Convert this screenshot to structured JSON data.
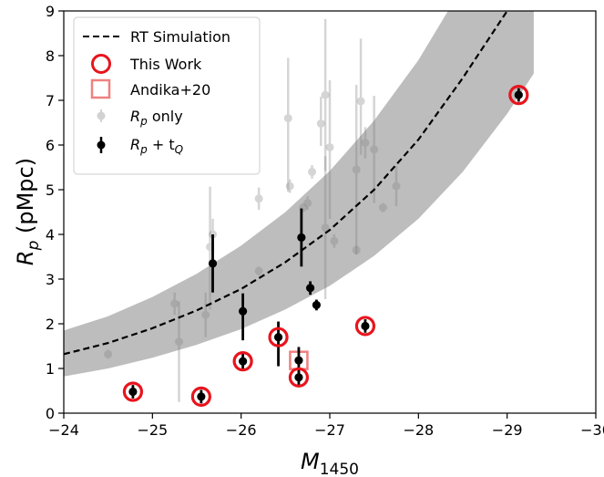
{
  "chart_data": {
    "type": "scatter",
    "xlabel": "M",
    "xlabel_sub": "1450",
    "ylabel": "R",
    "ylabel_sub": "p",
    "ylabel_units": " (pMpc)",
    "xlim": [
      -24,
      -30
    ],
    "ylim": [
      0,
      9
    ],
    "x_ticks": [
      -24,
      -25,
      -26,
      -27,
      -28,
      -29,
      -30
    ],
    "x_tick_labels": [
      "−24",
      "−25",
      "−26",
      "−27",
      "−28",
      "−29",
      "−30"
    ],
    "y_ticks": [
      0,
      1,
      2,
      3,
      4,
      5,
      6,
      7,
      8,
      9
    ],
    "y_tick_labels": [
      "0",
      "1",
      "2",
      "3",
      "4",
      "5",
      "6",
      "7",
      "8",
      "9"
    ],
    "grid": false,
    "legend_position": "top-left",
    "legend": [
      {
        "label": "RT Simulation",
        "marker": "dashed-line"
      },
      {
        "label": "This Work",
        "marker": "red-circle"
      },
      {
        "label": "Andika+20",
        "marker": "pink-square"
      },
      {
        "label": "R",
        "label_sub": "p",
        "label_suffix": " only",
        "marker": "grey-errorbar"
      },
      {
        "label": "R",
        "label_sub": "p",
        "label_mid": " + t",
        "label_sub2": "Q",
        "marker": "black-errorbar"
      }
    ],
    "series": [
      {
        "name": "RT Simulation",
        "kind": "line",
        "x": [
          -24.0,
          -24.5,
          -25.0,
          -25.5,
          -26.0,
          -26.5,
          -27.0,
          -27.5,
          -28.0,
          -28.5,
          -29.0,
          -29.3
        ],
        "y": [
          1.32,
          1.57,
          1.9,
          2.3,
          2.78,
          3.38,
          4.1,
          5.0,
          6.12,
          7.5,
          9.0,
          9.5
        ],
        "band_lower": [
          0.82,
          1.0,
          1.24,
          1.53,
          1.88,
          2.32,
          2.85,
          3.52,
          4.35,
          5.4,
          6.7,
          7.6
        ],
        "band_upper": [
          1.85,
          2.17,
          2.6,
          3.12,
          3.75,
          4.5,
          5.42,
          6.55,
          7.9,
          9.55,
          11.4,
          12.6
        ]
      },
      {
        "name": "Rp only",
        "kind": "errorbar",
        "color": "#7f7f7f",
        "points": [
          {
            "x": -24.5,
            "y": 1.32,
            "yerr": [
              0.1,
              0.1
            ]
          },
          {
            "x": -25.25,
            "y": 2.45,
            "yerr": [
              0.25,
              0.25
            ]
          },
          {
            "x": -25.3,
            "y": 1.6,
            "yerr": [
              1.35,
              0.9
            ]
          },
          {
            "x": -25.6,
            "y": 2.2,
            "yerr": [
              0.5,
              0.5
            ]
          },
          {
            "x": -25.65,
            "y": 3.72,
            "yerr": [
              1.4,
              1.35
            ]
          },
          {
            "x": -25.68,
            "y": 4.0,
            "yerr": [
              0.25,
              0.35
            ]
          },
          {
            "x": -26.2,
            "y": 4.8,
            "yerr": [
              0.25,
              0.25
            ]
          },
          {
            "x": -26.2,
            "y": 3.18,
            "yerr": [
              0.1,
              0.1
            ]
          },
          {
            "x": -26.53,
            "y": 6.6,
            "yerr": [
              1.65,
              1.35
            ]
          },
          {
            "x": -26.55,
            "y": 5.08,
            "yerr": [
              0.15,
              0.15
            ]
          },
          {
            "x": -26.7,
            "y": 4.6,
            "yerr": [
              0.1,
              0.1
            ]
          },
          {
            "x": -26.75,
            "y": 4.7,
            "yerr": [
              0.15,
              0.15
            ]
          },
          {
            "x": -26.8,
            "y": 5.4,
            "yerr": [
              0.15,
              0.15
            ]
          },
          {
            "x": -26.9,
            "y": 6.48,
            "yerr": [
              0.5,
              0.6
            ]
          },
          {
            "x": -26.95,
            "y": 7.12,
            "yerr": [
              1.7,
              1.7
            ]
          },
          {
            "x": -26.95,
            "y": 4.15,
            "yerr": [
              1.6,
              1.6
            ]
          },
          {
            "x": -27.0,
            "y": 5.95,
            "yerr": [
              1.6,
              1.5
            ]
          },
          {
            "x": -27.05,
            "y": 3.85,
            "yerr": [
              0.15,
              0.15
            ]
          },
          {
            "x": -27.3,
            "y": 5.45,
            "yerr": [
              1.9,
              1.9
            ]
          },
          {
            "x": -27.3,
            "y": 3.65,
            "yerr": [
              0.1,
              0.1
            ]
          },
          {
            "x": -27.35,
            "y": 6.98,
            "yerr": [
              1.2,
              1.4
            ]
          },
          {
            "x": -27.4,
            "y": 6.05,
            "yerr": [
              0.35,
              0.35
            ]
          },
          {
            "x": -27.5,
            "y": 5.9,
            "yerr": [
              1.2,
              1.2
            ]
          },
          {
            "x": -27.6,
            "y": 4.6,
            "yerr": [
              0.1,
              0.1
            ]
          },
          {
            "x": -27.75,
            "y": 5.08,
            "yerr": [
              0.45,
              0.45
            ]
          }
        ]
      },
      {
        "name": "Rp + tQ",
        "kind": "errorbar",
        "color": "#000000",
        "points": [
          {
            "x": -24.78,
            "y": 0.48,
            "yerr": [
              0.15,
              0.15
            ]
          },
          {
            "x": -25.55,
            "y": 0.37,
            "yerr": [
              0.15,
              0.15
            ]
          },
          {
            "x": -25.68,
            "y": 3.35,
            "yerr": [
              0.65,
              0.65
            ]
          },
          {
            "x": -26.02,
            "y": 1.16,
            "yerr": [
              0.2,
              0.2
            ]
          },
          {
            "x": -26.02,
            "y": 2.28,
            "yerr": [
              0.65,
              0.4
            ]
          },
          {
            "x": -26.42,
            "y": 1.7,
            "yerr": [
              0.65,
              0.35
            ]
          },
          {
            "x": -26.65,
            "y": 0.8,
            "yerr": [
              0.2,
              0.2
            ]
          },
          {
            "x": -26.65,
            "y": 1.18,
            "yerr": [
              0.3,
              0.3
            ]
          },
          {
            "x": -26.68,
            "y": 3.93,
            "yerr": [
              0.65,
              0.65
            ]
          },
          {
            "x": -26.78,
            "y": 2.8,
            "yerr": [
              0.15,
              0.15
            ]
          },
          {
            "x": -26.85,
            "y": 2.42,
            "yerr": [
              0.12,
              0.12
            ]
          },
          {
            "x": -27.4,
            "y": 1.95,
            "yerr": [
              0.15,
              0.15
            ]
          },
          {
            "x": -29.13,
            "y": 7.12,
            "yerr": [
              0.15,
              0.15
            ]
          }
        ]
      },
      {
        "name": "This Work",
        "kind": "marker",
        "marker": "circle",
        "color": "#e8141d",
        "points": [
          {
            "x": -24.78,
            "y": 0.48
          },
          {
            "x": -25.55,
            "y": 0.37
          },
          {
            "x": -26.02,
            "y": 1.16
          },
          {
            "x": -26.42,
            "y": 1.7
          },
          {
            "x": -26.65,
            "y": 0.8
          },
          {
            "x": -27.4,
            "y": 1.95
          },
          {
            "x": -29.13,
            "y": 7.12
          }
        ]
      },
      {
        "name": "Andika+20",
        "kind": "marker",
        "marker": "square",
        "color": "#f08080",
        "points": [
          {
            "x": -26.65,
            "y": 1.18
          }
        ]
      }
    ]
  }
}
